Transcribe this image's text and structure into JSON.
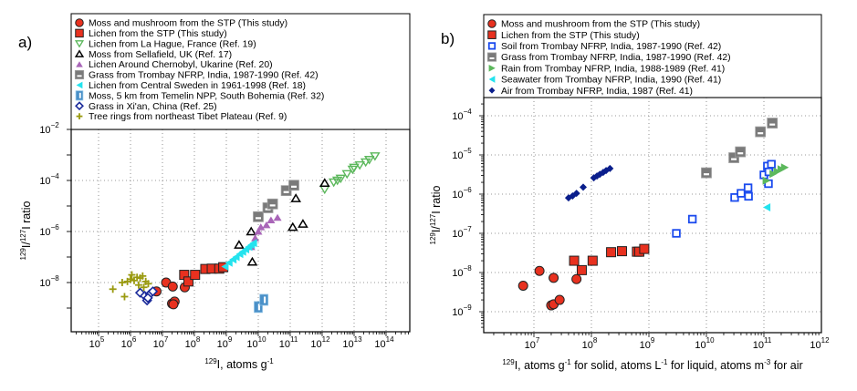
{
  "chart_data": [
    {
      "panel": "a)",
      "type": "scatter",
      "xscale": "log",
      "yscale": "log",
      "xlim": [
        15000.0,
        1000000000000000.0
      ],
      "ylim": [
        1e-10,
        0.01
      ],
      "xlabel": {
        "sup": "129",
        "main": "I, atoms g",
        "sup2": "-1"
      },
      "ylabel": {
        "sup1": "129",
        "mid": "I/",
        "sup2": "127",
        "end": "I ratio"
      },
      "xticks": [
        5,
        6,
        7,
        8,
        9,
        10,
        11,
        12,
        13,
        14
      ],
      "yticks": [
        -2,
        -4,
        -6,
        -8
      ],
      "grid": true,
      "legend_position": "top",
      "series": [
        {
          "name": "Moss and mushroom  from the STP (This study)",
          "marker": "circle",
          "color": "#e8311f",
          "edge": "#222222",
          "points": [
            [
              6500000.0,
              4.5e-09
            ],
            [
              13000000.0,
              1e-08
            ],
            [
              21000000.0,
              7e-09
            ],
            [
              20000000.0,
              1.5e-09
            ],
            [
              24000000.0,
              1.8e-09
            ],
            [
              22000000.0,
              1.4e-09
            ],
            [
              50000000.0,
              6.5e-09
            ]
          ]
        },
        {
          "name": "Lichen from the STP  (This study)",
          "marker": "square",
          "color": "#e8311f",
          "edge": "#222222",
          "points": [
            [
              48000000.0,
              2e-08
            ],
            [
              65000000.0,
              1.1e-08
            ],
            [
              105000000.0,
              2e-08
            ],
            [
              220000000.0,
              3.4e-08
            ],
            [
              350000000.0,
              3.5e-08
            ],
            [
              600000000.0,
              3.5e-08
            ],
            [
              800000000.0,
              4e-08
            ]
          ]
        },
        {
          "name": "Lichen from La Hague, France (Ref. 19)",
          "marker": "triangle-down-open",
          "color": "#5cb85c",
          "points": [
            [
              1200000000000.0,
              4.5e-05
            ],
            [
              2300000000000.0,
              8.5e-05
            ],
            [
              3000000000000.0,
              0.0001
            ],
            [
              3800000000000.0,
              0.00012
            ],
            [
              6000000000000.0,
              0.00018
            ],
            [
              9000000000000.0,
              0.00027
            ],
            [
              10000000000000.0,
              0.00032
            ],
            [
              15000000000000.0,
              0.0004
            ],
            [
              23000000000000.0,
              0.00052
            ],
            [
              30000000000000.0,
              0.00065
            ],
            [
              45000000000000.0,
              0.0009
            ]
          ]
        },
        {
          "name": "Moss from Sellafield, UK (Ref. 17)",
          "marker": "triangle-up-open",
          "color": "#000000",
          "points": [
            [
              2500000000.0,
              3e-07
            ],
            [
              6000000000.0,
              1e-06
            ],
            [
              6500000000.0,
              6.5e-08
            ],
            [
              120000000000.0,
              1.5e-06
            ],
            [
              150000000000.0,
              2e-05
            ],
            [
              250000000000.0,
              2e-06
            ],
            [
              1200000000000.0,
              8e-05
            ]
          ]
        },
        {
          "name": "Lichen Around Chernobyl, Ukarine (Ref. 20)",
          "marker": "triangle-up",
          "color": "#a966b8",
          "points": [
            [
              6000000000.0,
              2.5e-07
            ],
            [
              8000000000.0,
              5.5e-07
            ],
            [
              10000000000.0,
              1e-06
            ],
            [
              12000000000.0,
              1.5e-06
            ],
            [
              18000000000.0,
              1.8e-06
            ],
            [
              25000000000.0,
              2.8e-06
            ],
            [
              40000000000.0,
              3.5e-06
            ]
          ]
        },
        {
          "name": "Grass from Trombay NFRP, India, 1987-1990 (Ref. 42)",
          "marker": "square-bar",
          "color": "#7a7a7a",
          "points": [
            [
              10000000000.0,
              3.8e-06
            ],
            [
              20000000000.0,
              8.5e-06
            ],
            [
              28000000000.0,
              1.2e-05
            ],
            [
              75000000000.0,
              4e-05
            ],
            [
              130000000000.0,
              6.5e-05
            ]
          ]
        },
        {
          "name": "Lichen from Central Sweden in 1961-1998 (Ref. 18)",
          "marker": "triangle-left",
          "color": "#24e3ee",
          "points": [
            [
              900000000.0,
              4.2e-08
            ],
            [
              1200000000.0,
              6e-08
            ],
            [
              1600000000.0,
              8e-08
            ],
            [
              2000000000.0,
              1e-07
            ],
            [
              2600000000.0,
              1.3e-07
            ],
            [
              3200000000.0,
              1.6e-07
            ],
            [
              4000000000.0,
              2e-07
            ],
            [
              5000000000.0,
              2.5e-07
            ],
            [
              6000000000.0,
              3e-07
            ],
            [
              7000000000.0,
              3.5e-07
            ]
          ]
        },
        {
          "name": "Moss, 5 km from Temelin NPP, South Bohemia (Ref. 32)",
          "marker": "square-vbar",
          "color": "#4a90c8",
          "points": [
            [
              10000000000.0,
              1.1e-09
            ],
            [
              15000000000.0,
              2.1e-09
            ]
          ]
        },
        {
          "name": "Grass in Xi'an, China (Ref. 25)",
          "marker": "diamond-open",
          "color": "#1a2a9a",
          "points": [
            [
              2000000.0,
              4e-09
            ],
            [
              2800000.0,
              3e-09
            ],
            [
              3300000.0,
              2e-09
            ],
            [
              4000000.0,
              3.5e-09
            ],
            [
              5000000.0,
              4.5e-09
            ],
            [
              3500000.0,
              2.5e-09
            ]
          ]
        },
        {
          "name": "Tree rings from northeast Tibet Plateau (Ref. 9)",
          "marker": "plus",
          "color": "#9a9a10",
          "points": [
            [
              280000.0,
              5.5e-09
            ],
            [
              650000.0,
              2.8e-09
            ],
            [
              550000.0,
              1e-08
            ],
            [
              800000.0,
              1.1e-08
            ],
            [
              1100000.0,
              2e-08
            ],
            [
              1300000.0,
              1.2e-08
            ],
            [
              1600000.0,
              1.6e-08
            ],
            [
              2000000.0,
              1.5e-08
            ],
            [
              2400000.0,
              1.8e-08
            ],
            [
              3000000.0,
              1.1e-08
            ],
            [
              3600000.0,
              9e-09
            ],
            [
              1800000.0,
              8e-09
            ],
            [
              2600000.0,
              6.5e-09
            ],
            [
              1000000.0,
              1.35e-08
            ]
          ]
        }
      ]
    },
    {
      "panel": "b)",
      "type": "scatter",
      "xscale": "log",
      "yscale": "log",
      "xlim": [
        1300000.0,
        1000000000000.0
      ],
      "ylim": [
        3e-10,
        0.0003
      ],
      "xlabel": {
        "sup": "129",
        "main": "I, atoms g",
        "sup2": "-1",
        "rest1": " for solid, atoms L",
        "sup3": "-1",
        "rest2": " for liquid, atoms m",
        "sup4": "-3",
        "rest3": " for air"
      },
      "ylabel": {
        "sup1": "129",
        "mid": "I/",
        "sup2": "127",
        "end": "I ratio"
      },
      "xticks": [
        7,
        8,
        9,
        10,
        11,
        12
      ],
      "yticks": [
        -4,
        -5,
        -6,
        -7,
        -8,
        -9
      ],
      "grid": true,
      "legend_position": "top",
      "series": [
        {
          "name": "Moss and mushroom from the STP (This study)",
          "marker": "circle",
          "color": "#e8311f",
          "edge": "#222222",
          "points": [
            [
              6500000.0,
              4.6e-09
            ],
            [
              12500000.0,
              1.1e-08
            ],
            [
              22000000.0,
              7.3e-09
            ],
            [
              20000000.0,
              1.45e-09
            ],
            [
              22000000.0,
              1.55e-09
            ],
            [
              28000000.0,
              2e-09
            ],
            [
              55000000.0,
              6.8e-09
            ]
          ]
        },
        {
          "name": "Lichen from the STP  (This study)",
          "marker": "square",
          "color": "#e8311f",
          "edge": "#222222",
          "points": [
            [
              50000000.0,
              2e-08
            ],
            [
              68000000.0,
              1.15e-08
            ],
            [
              105000000.0,
              2e-08
            ],
            [
              220000000.0,
              3.3e-08
            ],
            [
              340000000.0,
              3.5e-08
            ],
            [
              620000000.0,
              3.4e-08
            ],
            [
              680000000.0,
              3.4e-08
            ],
            [
              830000000.0,
              4e-08
            ]
          ]
        },
        {
          "name": "Soil from Trombay NFRP, India, 1987-1990 (Ref. 42)",
          "marker": "square-open-small",
          "color": "#1a4aee",
          "points": [
            [
              3000000000.0,
              1e-07
            ],
            [
              5700000000.0,
              2.3e-07
            ],
            [
              31000000000.0,
              8.2e-07
            ],
            [
              40000000000.0,
              1.05e-06
            ],
            [
              53000000000.0,
              1.45e-06
            ],
            [
              54000000000.0,
              8.8e-07
            ],
            [
              100000000000.0,
              3.1e-06
            ],
            [
              115000000000.0,
              5.2e-06
            ],
            [
              135000000000.0,
              5.8e-06
            ],
            [
              122000000000.0,
              3.7e-06
            ],
            [
              120000000000.0,
              1.85e-06
            ]
          ]
        },
        {
          "name": "Grass from Trombay NFRP, India, 1987-1990 (Ref. 42)",
          "marker": "square-bar",
          "color": "#7a7a7a",
          "points": [
            [
              10000000000.0,
              3.5e-06
            ],
            [
              30000000000.0,
              8.5e-06
            ],
            [
              39000000000.0,
              1.2e-05
            ],
            [
              87000000000.0,
              3.9e-05
            ],
            [
              140000000000.0,
              6.5e-05
            ]
          ]
        },
        {
          "name": "Rain from Trombay NFRP, India, 1988-1989  (Ref. 41)",
          "marker": "triangle-right",
          "color": "#5cb85c",
          "points": [
            [
              110000000000.0,
              2.2e-06
            ],
            [
              145000000000.0,
              3.3e-06
            ],
            [
              170000000000.0,
              3.8e-06
            ],
            [
              200000000000.0,
              4.3e-06
            ],
            [
              230000000000.0,
              4.8e-06
            ]
          ]
        },
        {
          "name": "Seawater from Trombay NFRP, India, 1990  (Ref. 41)",
          "marker": "triangle-left",
          "color": "#24e3ee",
          "points": [
            [
              112000000000.0,
              4.6e-07
            ]
          ]
        },
        {
          "name": "Air from Trombay NFRP, India, 1987  (Ref. 41)",
          "marker": "diamond",
          "color": "#0a1e8c",
          "points": [
            [
              40000000.0,
              8e-07
            ],
            [
              47000000.0,
              9e-07
            ],
            [
              55000000.0,
              1.05e-06
            ],
            [
              72000000.0,
              1.5e-06
            ],
            [
              110000000.0,
              2.6e-06
            ],
            [
              125000000.0,
              2.9e-06
            ],
            [
              140000000.0,
              3.2e-06
            ],
            [
              160000000.0,
              3.6e-06
            ],
            [
              180000000.0,
              4e-06
            ],
            [
              210000000.0,
              4.5e-06
            ]
          ]
        }
      ]
    }
  ]
}
